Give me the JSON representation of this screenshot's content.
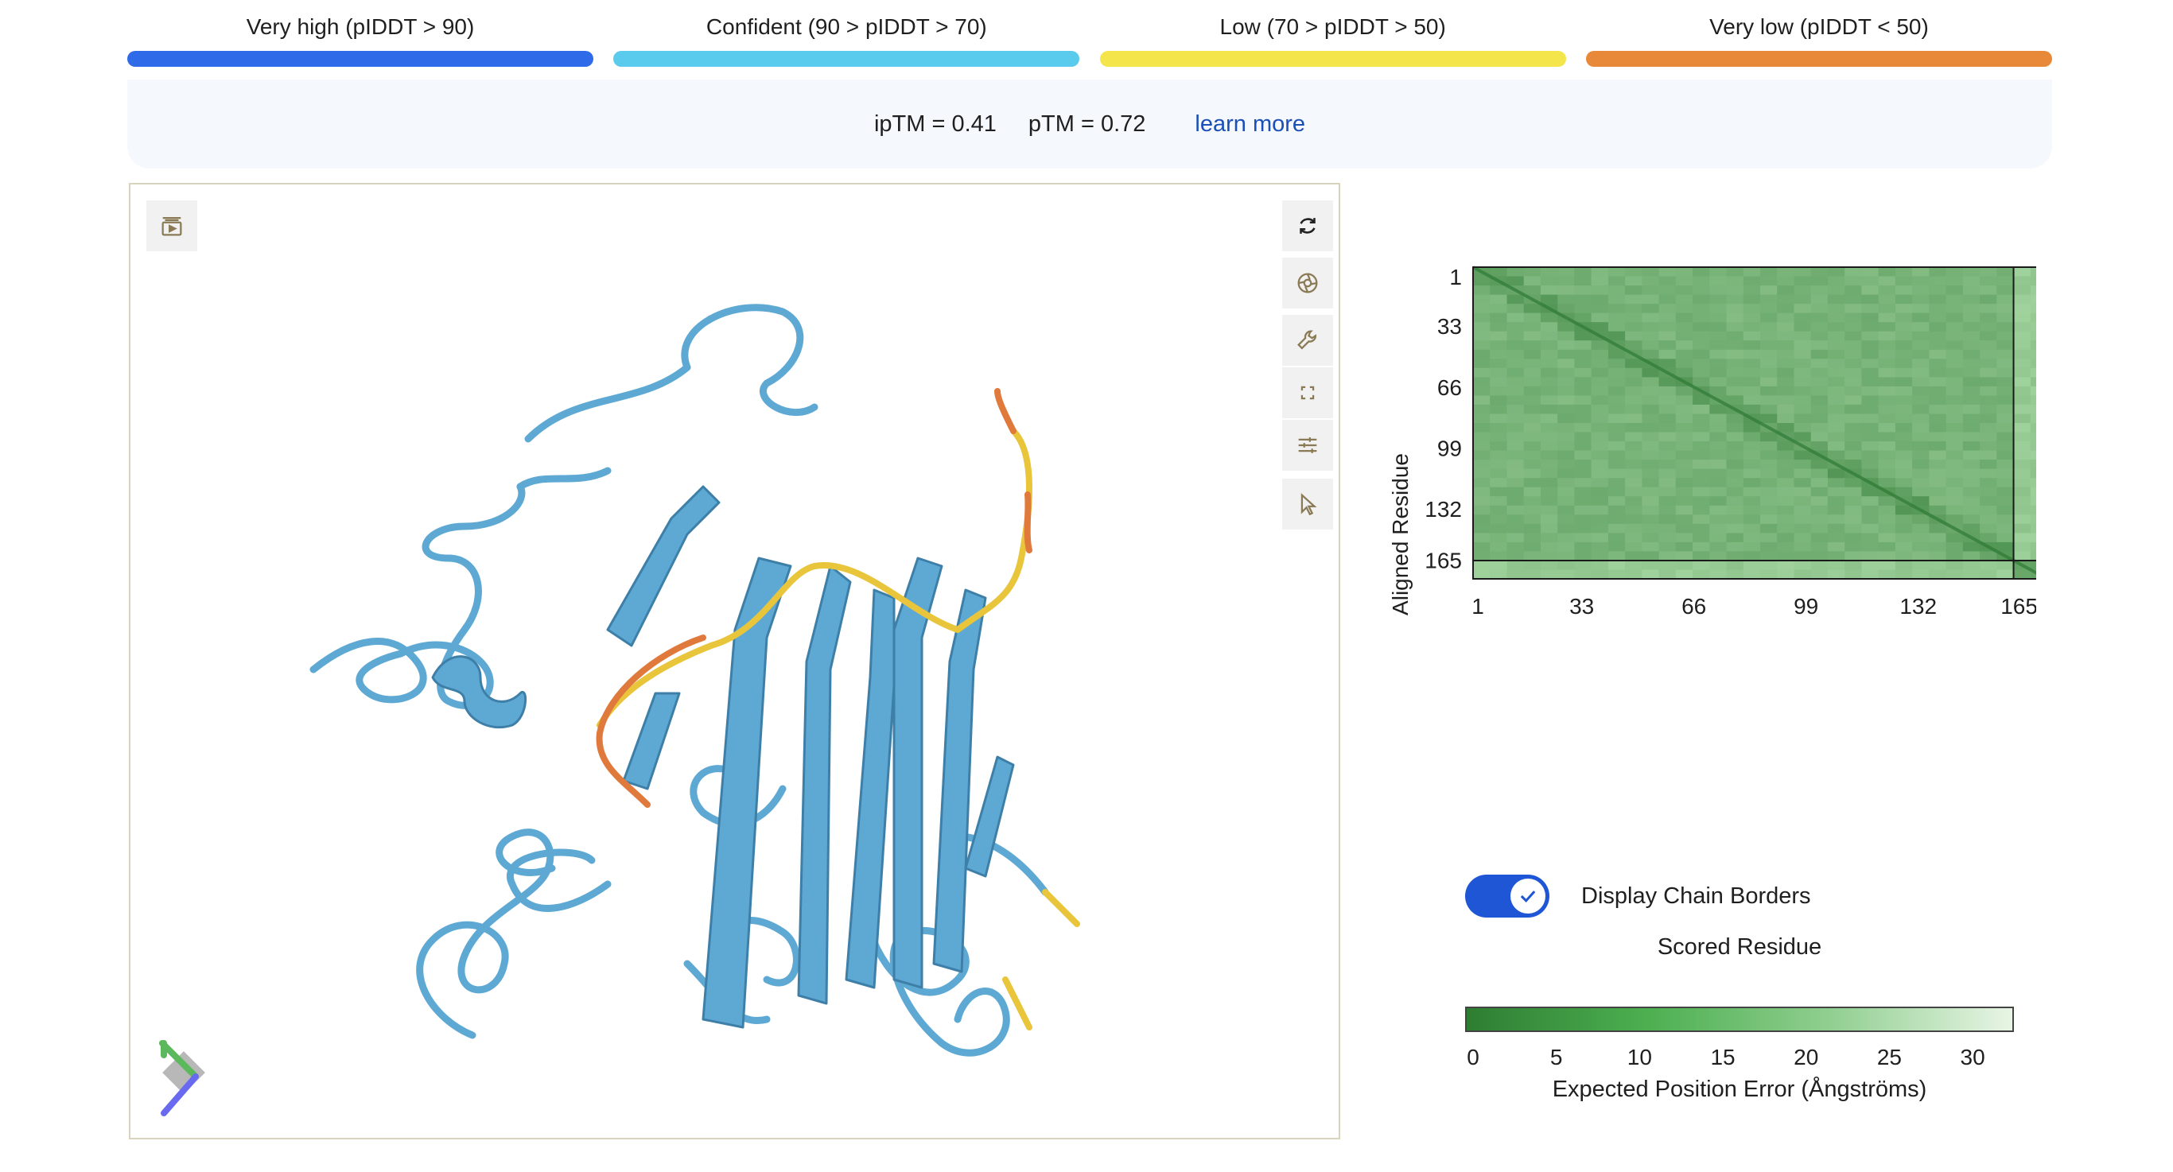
{
  "legend": [
    {
      "label": "Very high (pIDDT > 90)",
      "color": "#2f6ae8"
    },
    {
      "label": "Confident (90 > pIDDT > 70)",
      "color": "#5acbec"
    },
    {
      "label": "Low (70 > pIDDT > 50)",
      "color": "#f4e54a"
    },
    {
      "label": "Very low (pIDDT < 50)",
      "color": "#e8893a"
    }
  ],
  "metrics": {
    "iptm": "ipTM = 0.41",
    "ptm": "pTM = 0.72",
    "learn_more": "learn more"
  },
  "viewer": {
    "tools": [
      "sequence-panel-icon",
      "reset-rotation-icon",
      "screenshot-icon",
      "wrench-icon",
      "fullscreen-icon",
      "settings-sliders-icon",
      "select-cursor-icon"
    ],
    "structure_color": "#5ea9d4"
  },
  "pae": {
    "y_axis_title": "Aligned Residue",
    "x_axis_title": "Scored Residue",
    "y_ticks": [
      "1",
      "33",
      "66",
      "99",
      "132",
      "165"
    ],
    "x_ticks": [
      "1",
      "33",
      "66",
      "99",
      "132",
      "165"
    ],
    "chain_boundary_residue": 160,
    "total_residues": 170,
    "toggle_label": "Display Chain Borders",
    "toggle_on": true,
    "colorbar_ticks": [
      "0",
      "5",
      "10",
      "15",
      "20",
      "25",
      "30"
    ],
    "colorbar_label": "Expected Position Error (Ångströms)",
    "colorbar_min_color": "#2e7d32",
    "colorbar_max_color": "#e8f5e5"
  }
}
